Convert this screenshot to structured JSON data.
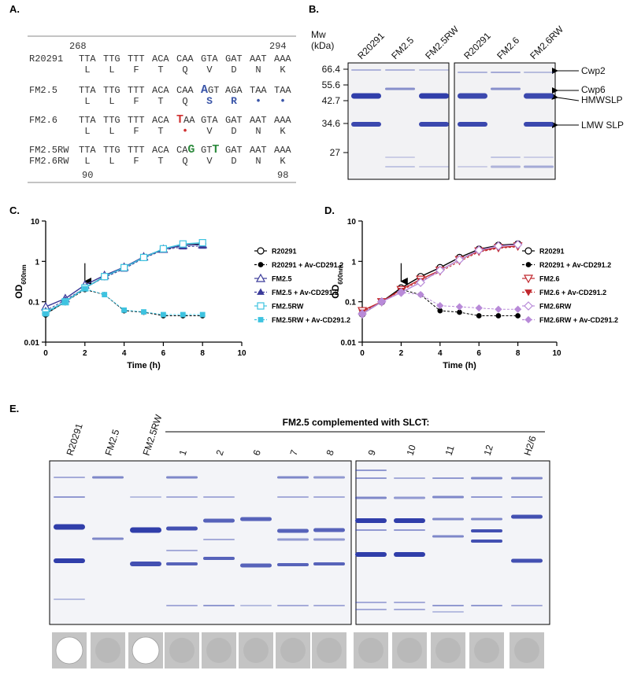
{
  "panel_a": {
    "label": "A.",
    "positions_top": [
      268,
      294
    ],
    "positions_bottom": [
      90,
      98
    ],
    "rows": [
      {
        "name": "R20291",
        "codons": [
          "TTA",
          "TTG",
          "TTT",
          "ACA",
          "CAA",
          "GTA",
          "GAT",
          "AAT",
          "AAA"
        ],
        "aa": [
          "L",
          "L",
          "F",
          "T",
          "Q",
          "V",
          "D",
          "N",
          "K"
        ]
      },
      {
        "name": "FM2.5",
        "codons": [
          "TTA",
          "TTG",
          "TTT",
          "ACA",
          "CAA",
          [
            {
              "text": "A",
              "color": "#3a55a8"
            },
            "GT"
          ],
          "AGA",
          "TAA",
          "TAA"
        ],
        "aa": [
          "L",
          "L",
          "F",
          "T",
          "Q",
          {
            "text": "S",
            "color": "#3a55a8"
          },
          {
            "text": "R",
            "color": "#3a55a8"
          },
          {
            "text": "•",
            "color": "#3a55a8"
          },
          {
            "text": "•",
            "color": "#3a55a8"
          }
        ]
      },
      {
        "name": "FM2.6",
        "codons": [
          "TTA",
          "TTG",
          "TTT",
          "ACA",
          [
            {
              "text": "T",
              "color": "#d03030"
            },
            "AA"
          ],
          "GTA",
          "GAT",
          "AAT",
          "AAA"
        ],
        "aa": [
          "L",
          "L",
          "F",
          "T",
          {
            "text": "•",
            "color": "#d03030"
          },
          "V",
          "D",
          "N",
          "K"
        ]
      },
      {
        "name": "FM2.5RW",
        "name_aa": "FM2.6RW",
        "codons": [
          "TTA",
          "TTG",
          "TTT",
          "ACA",
          [
            "CA",
            {
              "text": "G",
              "color": "#2e8b3e"
            }
          ],
          [
            "GT",
            {
              "text": "T",
              "color": "#2e8b3e"
            }
          ],
          "GAT",
          "AAT",
          "AAA"
        ],
        "aa": [
          "L",
          "L",
          "F",
          "T",
          "Q",
          "V",
          "D",
          "N",
          "K"
        ]
      }
    ]
  },
  "panel_b": {
    "label": "B.",
    "mw_title": [
      "Mw",
      "(kDa)"
    ],
    "markers": [
      66.4,
      55.6,
      42.7,
      34.6,
      27
    ],
    "lanes": [
      "R20291",
      "FM2.5",
      "FM2.5RW",
      "R20291",
      "FM2.6",
      "FM2.6RW"
    ],
    "bands": [
      "Cwp2",
      "Cwp6",
      "HMWSLP",
      "LMW SLP"
    ]
  },
  "chart_data": [
    {
      "type": "line",
      "panel_label": "C.",
      "xlabel": "Time (h)",
      "ylabel": "OD",
      "ylabel_sub": "600nm",
      "log_y": true,
      "xlim": [
        0,
        10
      ],
      "ylim": [
        0.01,
        10
      ],
      "xticks": [
        0,
        2,
        4,
        6,
        8,
        10
      ],
      "yticks": [
        0.01,
        0.1,
        1,
        10
      ],
      "x": [
        0,
        1,
        2,
        3,
        4,
        5,
        6,
        7,
        8
      ],
      "series": [
        {
          "name": "R20291",
          "color": "#000000",
          "marker": "circle",
          "filled": false,
          "dashed": false,
          "values": [
            0.05,
            0.1,
            0.22,
            0.42,
            0.7,
            1.25,
            2.0,
            2.5,
            2.7
          ]
        },
        {
          "name": "R20291 + Av-CD291.2",
          "color": "#000000",
          "marker": "circle",
          "filled": true,
          "dashed": true,
          "values": [
            0.05,
            0.1,
            0.2,
            0.15,
            0.06,
            0.055,
            0.045,
            0.045,
            0.045
          ]
        },
        {
          "name": "FM2.5",
          "color": "#3b3b9a",
          "marker": "triangle",
          "filled": false,
          "dashed": false,
          "values": [
            0.075,
            0.12,
            0.26,
            0.45,
            0.72,
            1.3,
            2.0,
            2.5,
            2.6
          ]
        },
        {
          "name": "FM2.5 + Av-CD291.2",
          "color": "#3b3b9a",
          "marker": "triangle",
          "filled": true,
          "dashed": true,
          "values": [
            0.06,
            0.11,
            0.22,
            0.4,
            0.65,
            1.2,
            1.9,
            2.3,
            2.4
          ]
        },
        {
          "name": "FM2.5RW",
          "color": "#3ec3e0",
          "marker": "square",
          "filled": false,
          "dashed": false,
          "values": [
            0.055,
            0.1,
            0.22,
            0.42,
            0.7,
            1.25,
            2.05,
            2.7,
            2.9
          ]
        },
        {
          "name": "FM2.5RW + Av-CD291.2",
          "color": "#3ec3e0",
          "marker": "square",
          "filled": true,
          "dashed": true,
          "values": [
            0.05,
            0.1,
            0.21,
            0.15,
            0.062,
            0.056,
            0.048,
            0.048,
            0.048
          ]
        }
      ]
    },
    {
      "type": "line",
      "panel_label": "D.",
      "xlabel": "Time (h)",
      "ylabel": "OD",
      "ylabel_sub": "600nm",
      "log_y": true,
      "xlim": [
        0,
        10
      ],
      "ylim": [
        0.01,
        10
      ],
      "xticks": [
        0,
        2,
        4,
        6,
        8,
        10
      ],
      "yticks": [
        0.01,
        0.1,
        1,
        10
      ],
      "x": [
        0,
        1,
        2,
        3,
        4,
        5,
        6,
        7,
        8
      ],
      "series": [
        {
          "name": "R20291",
          "color": "#000000",
          "marker": "circle",
          "filled": false,
          "dashed": false,
          "values": [
            0.05,
            0.1,
            0.22,
            0.42,
            0.7,
            1.25,
            2.0,
            2.5,
            2.7
          ]
        },
        {
          "name": "R20291 + Av-CD291.2",
          "color": "#000000",
          "marker": "circle",
          "filled": true,
          "dashed": true,
          "values": [
            0.05,
            0.1,
            0.2,
            0.15,
            0.06,
            0.055,
            0.045,
            0.045,
            0.045
          ]
        },
        {
          "name": "FM2.6",
          "color": "#c0272d",
          "marker": "triangle-down",
          "filled": false,
          "dashed": false,
          "values": [
            0.06,
            0.1,
            0.2,
            0.36,
            0.6,
            1.1,
            1.8,
            2.2,
            2.4
          ]
        },
        {
          "name": "FM2.6 + Av-CD291.2",
          "color": "#c0272d",
          "marker": "triangle-down",
          "filled": true,
          "dashed": true,
          "values": [
            0.055,
            0.1,
            0.19,
            0.33,
            0.55,
            1.0,
            1.7,
            2.1,
            2.3
          ]
        },
        {
          "name": "FM2.6RW",
          "color": "#b88ad8",
          "marker": "diamond",
          "filled": false,
          "dashed": false,
          "values": [
            0.05,
            0.1,
            0.17,
            0.3,
            0.6,
            1.1,
            1.9,
            2.4,
            2.6
          ]
        },
        {
          "name": "FM2.6RW + Av-CD291.2",
          "color": "#b88ad8",
          "marker": "diamond",
          "filled": true,
          "dashed": true,
          "values": [
            0.05,
            0.1,
            0.17,
            0.15,
            0.08,
            0.075,
            0.07,
            0.065,
            0.065
          ]
        }
      ]
    }
  ],
  "panel_e": {
    "label": "E.",
    "header": "FM2.5 complemented with SLCT:",
    "lanes": [
      "R20291",
      "FM2.5",
      "FM2.5RW",
      "1",
      "2",
      "6",
      "7",
      "8",
      "9",
      "10",
      "11",
      "12",
      "H2/6"
    ]
  }
}
